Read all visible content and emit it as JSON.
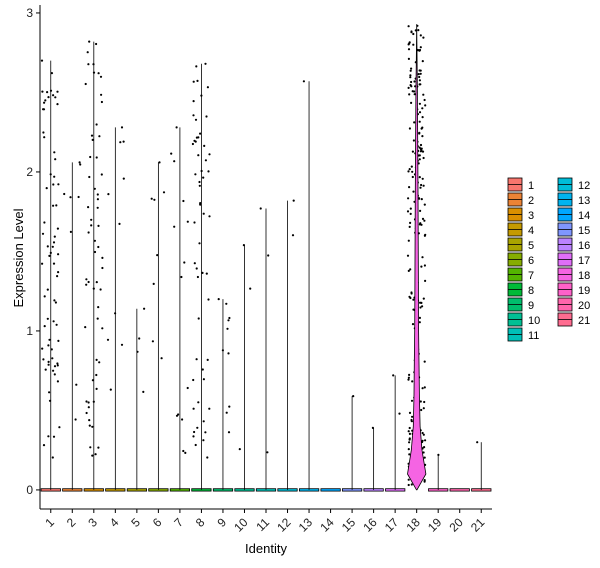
{
  "chart_data": {
    "type": "violin",
    "xlabel": "Identity",
    "ylabel": "Expression Level",
    "ylim": [
      -0.12,
      3.05
    ],
    "yticks": [
      "0",
      "1",
      "2",
      "3"
    ],
    "ytick_values": [
      0,
      1,
      2,
      3
    ],
    "categories": [
      "1",
      "2",
      "3",
      "4",
      "5",
      "6",
      "7",
      "8",
      "9",
      "10",
      "11",
      "12",
      "13",
      "14",
      "15",
      "16",
      "17",
      "18",
      "19",
      "20",
      "21"
    ],
    "series_colors": [
      "#F8766D",
      "#EB8335",
      "#DA8F00",
      "#C49A00",
      "#A9A400",
      "#86AC00",
      "#53B400",
      "#00BA38",
      "#00BE6C",
      "#00C094",
      "#00C0B8",
      "#00BDD8",
      "#00B4EF",
      "#00A7FF",
      "#7F96FF",
      "#BB83FF",
      "#E06EF8",
      "#F564E3",
      "#FE61C9",
      "#FF65AC",
      "#FF6C90"
    ],
    "series": [
      {
        "name": "1",
        "max": 2.7
      },
      {
        "name": "2",
        "max": 2.06
      },
      {
        "name": "3",
        "max": 2.82
      },
      {
        "name": "4",
        "max": 2.28
      },
      {
        "name": "5",
        "max": 1.14
      },
      {
        "name": "6",
        "max": 2.06
      },
      {
        "name": "7",
        "max": 2.28
      },
      {
        "name": "8",
        "max": 2.68
      },
      {
        "name": "9",
        "max": 1.2
      },
      {
        "name": "10",
        "max": 1.54
      },
      {
        "name": "11",
        "max": 1.77
      },
      {
        "name": "12",
        "max": 1.82
      },
      {
        "name": "13",
        "max": 2.57
      },
      {
        "name": "14",
        "max": 0.0
      },
      {
        "name": "15",
        "max": 0.59
      },
      {
        "name": "16",
        "max": 0.39
      },
      {
        "name": "17",
        "max": 0.72
      },
      {
        "name": "18",
        "max": 2.93
      },
      {
        "name": "19",
        "max": 0.22
      },
      {
        "name": "20",
        "max": 0.0
      },
      {
        "name": "21",
        "max": 0.3
      }
    ],
    "legend_position": "right",
    "grid": false
  }
}
